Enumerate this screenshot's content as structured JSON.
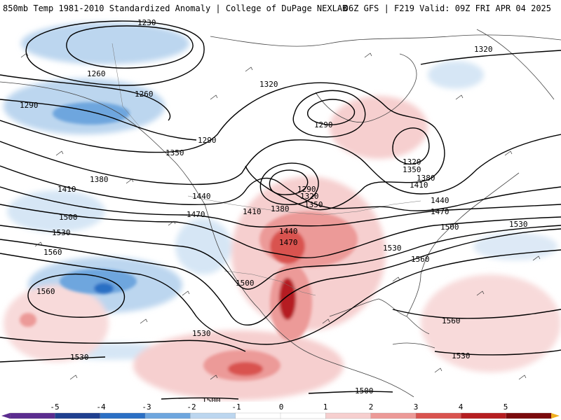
{
  "header": {
    "left_title": "850mb Temp 1981-2010 Standardized Anomaly | College of DuPage NEXLAB",
    "right_title": "06Z GFS | F219 Valid: 09Z FRI APR 04 2025"
  },
  "colors": {
    "neg5": "#5b2c8f",
    "neg4": "#1f3f8f",
    "neg3": "#2b6fc4",
    "neg2": "#6ea6de",
    "neg1": "#bcd6ef",
    "zero": "#ffffff",
    "pos1": "#f6cfcf",
    "pos2": "#ec9a98",
    "pos3": "#d9534f",
    "pos4": "#b51d20",
    "pos5": "#7a0a0c",
    "pos6": "#f0b020"
  },
  "contour_labels": [
    {
      "id": "l1230",
      "text": "1230"
    },
    {
      "id": "l1260a",
      "text": "1260"
    },
    {
      "id": "l1260b",
      "text": "1260"
    },
    {
      "id": "l1290a",
      "text": "1290"
    },
    {
      "id": "l1290b",
      "text": "1290"
    },
    {
      "id": "l1290c",
      "text": "1290"
    },
    {
      "id": "l1290d",
      "text": "1290"
    },
    {
      "id": "l1320a",
      "text": "1320"
    },
    {
      "id": "l1320b",
      "text": "1320"
    },
    {
      "id": "l1320c",
      "text": "1320"
    },
    {
      "id": "l1320d",
      "text": "1320"
    },
    {
      "id": "l1350a",
      "text": "1350"
    },
    {
      "id": "l1350b",
      "text": "1350"
    },
    {
      "id": "l1350c",
      "text": "1350"
    },
    {
      "id": "l1380a",
      "text": "1380"
    },
    {
      "id": "l1380b",
      "text": "1380"
    },
    {
      "id": "l1380c",
      "text": "1380"
    },
    {
      "id": "l1410a",
      "text": "1410"
    },
    {
      "id": "l1410b",
      "text": "1410"
    },
    {
      "id": "l1410c",
      "text": "1410"
    },
    {
      "id": "l1440a",
      "text": "1440"
    },
    {
      "id": "l1440b",
      "text": "1440"
    },
    {
      "id": "l1440c",
      "text": "1440"
    },
    {
      "id": "l1470a",
      "text": "1470"
    },
    {
      "id": "l1470b",
      "text": "1470"
    },
    {
      "id": "l1470c",
      "text": "1470"
    },
    {
      "id": "l1500a",
      "text": "1500"
    },
    {
      "id": "l1500b",
      "text": "1500"
    },
    {
      "id": "l1500c",
      "text": "1500"
    },
    {
      "id": "l1500d",
      "text": "1500"
    },
    {
      "id": "l1500e",
      "text": "1500"
    },
    {
      "id": "l1530a",
      "text": "1530"
    },
    {
      "id": "l1530b",
      "text": "1530"
    },
    {
      "id": "l1530c",
      "text": "1530"
    },
    {
      "id": "l1530d",
      "text": "1530"
    },
    {
      "id": "l1530e",
      "text": "1530"
    },
    {
      "id": "l1530f",
      "text": "1530"
    },
    {
      "id": "l1560a",
      "text": "1560"
    },
    {
      "id": "l1560b",
      "text": "1560"
    },
    {
      "id": "l1560c",
      "text": "1560"
    },
    {
      "id": "l1560d",
      "text": "1560"
    }
  ],
  "colorbar": {
    "ticks": [
      "-5",
      "-4",
      "-3",
      "-2",
      "-1",
      "0",
      "1",
      "2",
      "3",
      "4",
      "5"
    ]
  }
}
